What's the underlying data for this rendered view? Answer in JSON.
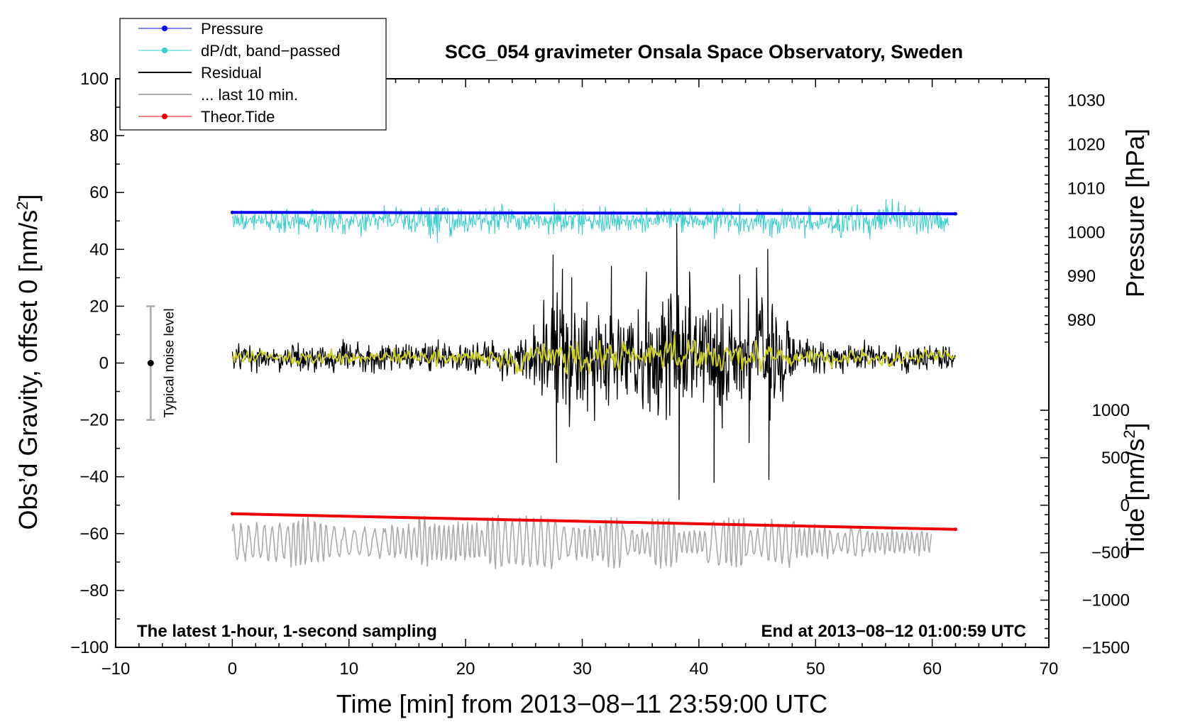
{
  "chart_data": {
    "type": "line",
    "title": "SCG_054 gravimeter Onsala Space Observatory, Sweden",
    "xlabel": "Time [min] from 2013−08−11 23:59:00 UTC",
    "ylabel_main": "Obs’d Gravity, offset 0 [nm/s",
    "ylabel_main_sup": "2",
    "ylabel_main_close": "]",
    "ylabel_pressure": "Pressure [hPa]",
    "ylabel_tide": "Tide [nm/s",
    "ylabel_tide_sup": "2",
    "ylabel_tide_close": "]",
    "xlim": [
      -10,
      70
    ],
    "ylim": [
      -100,
      100
    ],
    "x_ticks": [
      -10,
      0,
      10,
      20,
      30,
      40,
      50,
      60,
      70
    ],
    "x_tick_labels": [
      "−10",
      "0",
      "10",
      "20",
      "30",
      "40",
      "50",
      "60",
      "70"
    ],
    "y_ticks": [
      100,
      80,
      60,
      40,
      20,
      0,
      -20,
      -40,
      -60,
      -80,
      -100
    ],
    "y_tick_labels": [
      "100",
      "80",
      "60",
      "40",
      "20",
      "0",
      "−20",
      "−40",
      "−60",
      "−80",
      "−100"
    ],
    "pressure_axis": {
      "ticks": [
        1030,
        1020,
        1010,
        1000,
        990,
        980
      ],
      "tick_labels": [
        "1030",
        "1020",
        "1010",
        "1000",
        "990",
        "980"
      ],
      "gravity_equiv_at_1000": 46,
      "units_per_hpa": 1.545
    },
    "tide_axis": {
      "ticks": [
        1000,
        500,
        0,
        -500,
        -1000,
        -1500
      ],
      "tick_labels": [
        "1000",
        "500",
        "0",
        "−500",
        "−1000",
        "−1500"
      ],
      "gravity_equiv_at_0": -50,
      "units_per_nms2": 0.0334
    },
    "notes": {
      "bottom_left": "The latest 1-hour, 1-second sampling",
      "bottom_right": "End at 2013−08−12 01:00:59 UTC"
    },
    "noise_bar": {
      "x": -7,
      "y": 0,
      "ymin": -20,
      "ymax": 20,
      "label": "Typical noise level",
      "color": "#aaaaaa"
    },
    "legend": [
      {
        "label": "Pressure",
        "color": "#0000ee",
        "marker": true,
        "line_width": 1
      },
      {
        "label": "dP/dt, band−passed",
        "color": "#33cccc",
        "marker": true,
        "line_width": 1
      },
      {
        "label": "Residual",
        "color": "#000000",
        "marker": false,
        "line_width": 2
      },
      {
        "label": "... last 10 min.",
        "color": "#aaaaaa",
        "marker": false,
        "line_width": 2
      },
      {
        "label": "Theor.Tide",
        "color": "#ee0000",
        "marker": true,
        "line_width": 1
      }
    ],
    "series": [
      {
        "name": "Pressure",
        "color": "#0000ee",
        "width": 4,
        "x_range": [
          0,
          62
        ],
        "y_start": 53.0,
        "y_end": 52.5
      },
      {
        "name": "dP/dt, band-passed",
        "color": "#33cccc",
        "width": 1,
        "x_range": [
          0,
          61.5
        ],
        "baseline": 50,
        "envelope_x": [
          0,
          5,
          10,
          15,
          19,
          20,
          25,
          30,
          35,
          40,
          45,
          50,
          55,
          56,
          58,
          61.5
        ],
        "envelope_amp": [
          3,
          4,
          4,
          4,
          6,
          5,
          4,
          4,
          4,
          4,
          4,
          4,
          5,
          8,
          5,
          3
        ]
      },
      {
        "name": "Residual",
        "color": "#000000",
        "width": 1.3,
        "x_range": [
          0,
          62
        ],
        "baseline": 2,
        "envelope_x": [
          0,
          10,
          20,
          25,
          27,
          28,
          30,
          33,
          35,
          38,
          40,
          43,
          45,
          46,
          48,
          50,
          55,
          62
        ],
        "envelope_amp": [
          4,
          5,
          5,
          7,
          18,
          25,
          17,
          18,
          16,
          30,
          20,
          18,
          22,
          25,
          8,
          6,
          5,
          4
        ],
        "spikes": [
          [
            27.5,
            38
          ],
          [
            27.8,
            -35
          ],
          [
            28.3,
            33
          ],
          [
            29.1,
            30
          ],
          [
            32.5,
            34
          ],
          [
            35.5,
            32
          ],
          [
            38.1,
            49
          ],
          [
            38.3,
            -48
          ],
          [
            39.2,
            32
          ],
          [
            41.3,
            -42
          ],
          [
            43.5,
            31
          ],
          [
            44.3,
            -28
          ],
          [
            45.9,
            40
          ],
          [
            46.0,
            -41
          ]
        ]
      },
      {
        "name": "... last 10 min.",
        "color": "#aaaaaa",
        "width": 1.6,
        "x_range": [
          0,
          60
        ],
        "baseline": -63,
        "amplitude": 6
      },
      {
        "name": "Theor.Tide",
        "color": "#ee0000",
        "width": 4,
        "x_range": [
          0,
          62
        ],
        "y_start": -53,
        "y_end": -58.5
      },
      {
        "name": "Residual (smoothed)",
        "color": "#cccc22",
        "width": 2,
        "x_range": [
          0,
          62
        ],
        "baseline": 2,
        "envelope_x": [
          0,
          20,
          25,
          30,
          35,
          40,
          45,
          50,
          62
        ],
        "envelope_amp": [
          1.5,
          2,
          3,
          4,
          4,
          4.5,
          4,
          2,
          1.5
        ]
      }
    ]
  }
}
